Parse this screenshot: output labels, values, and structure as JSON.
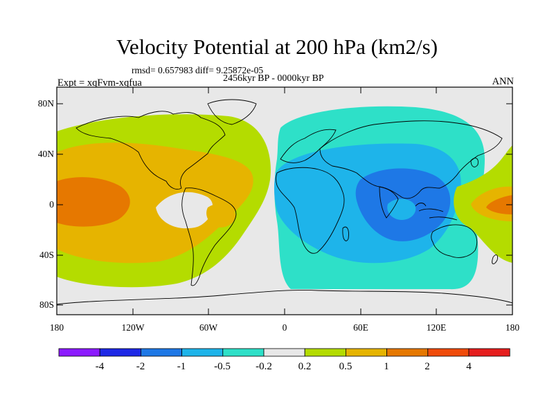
{
  "title": "Velocity Potential at 200 hPa (km2/s)",
  "stats_line": "rmsd= 0.657983 diff= 9.25872e-05",
  "period": "2456kyr BP - 0000kyr BP",
  "experiment": "Expt = xqFvm-xqfua",
  "season": "ANN",
  "lat_ticks": [
    "80N",
    "40N",
    "0",
    "40S",
    "80S"
  ],
  "lon_ticks": [
    "180",
    "120W",
    "60W",
    "0",
    "60E",
    "120E",
    "180"
  ],
  "colorbar": {
    "colors": [
      "#8c1aff",
      "#1e28e6",
      "#1e78e6",
      "#1eb4ea",
      "#2ee0c8",
      "#e8e8e8",
      "#b4dc00",
      "#e6b400",
      "#e67800",
      "#f04b0a",
      "#e61e1e"
    ],
    "labels": [
      "-4",
      "-2",
      "-1",
      "-0.5",
      "-0.2",
      "0.2",
      "0.5",
      "1",
      "2",
      "4"
    ]
  },
  "fill_colors": {
    "background": "#e8e8e8",
    "pos_weak": "#b4dc00",
    "pos_mid": "#e6b400",
    "pos_strong": "#e67800",
    "neg_weak": "#2ee0c8",
    "neg_mid": "#1eb4ea",
    "neg_strong": "#1e78e6"
  }
}
